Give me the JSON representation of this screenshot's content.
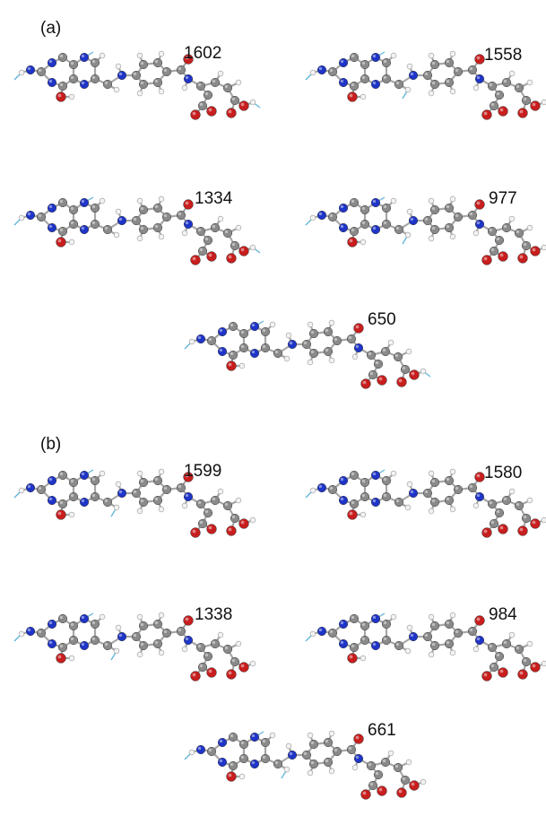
{
  "panels": [
    {
      "label": "(a)",
      "modes": [
        {
          "frequency": "1602"
        },
        {
          "frequency": "1558"
        },
        {
          "frequency": "1334"
        },
        {
          "frequency": "977"
        },
        {
          "frequency": "650"
        }
      ]
    },
    {
      "label": "(b)",
      "modes": [
        {
          "frequency": "1599"
        },
        {
          "frequency": "1580"
        },
        {
          "frequency": "1338"
        },
        {
          "frequency": "984"
        },
        {
          "frequency": "661"
        }
      ]
    }
  ],
  "colors": {
    "carbon": "#8a8a8a",
    "nitrogen": "#1f35c8",
    "oxygen": "#c81e1e",
    "hydrogen": "#f2f2f2",
    "bond": "#a7a7a7",
    "displacement": "#5fb4d8"
  }
}
